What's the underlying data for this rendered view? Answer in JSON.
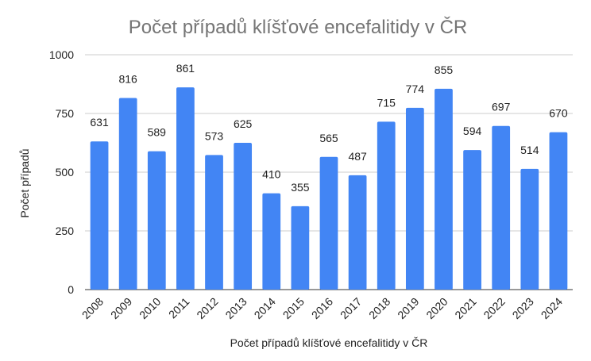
{
  "chart_data": {
    "type": "bar",
    "title": "Počet případů klíšťové encefalitidy v ČR",
    "xlabel": "Počet případů klíšťové encefalitidy v ČR",
    "ylabel": "Počet případů",
    "categories": [
      "2008",
      "2009",
      "2010",
      "2011",
      "2012",
      "2013",
      "2014",
      "2015",
      "2016",
      "2017",
      "2018",
      "2019",
      "2020",
      "2021",
      "2022",
      "2023",
      "2024"
    ],
    "values": [
      631,
      816,
      589,
      861,
      573,
      625,
      410,
      355,
      565,
      487,
      715,
      774,
      855,
      594,
      697,
      514,
      670
    ],
    "ylim": [
      0,
      1000
    ],
    "yticks": [
      "0",
      "250",
      "500",
      "750",
      "1000"
    ],
    "grid": true,
    "legend": "none",
    "bar_color": "#4285f4"
  }
}
